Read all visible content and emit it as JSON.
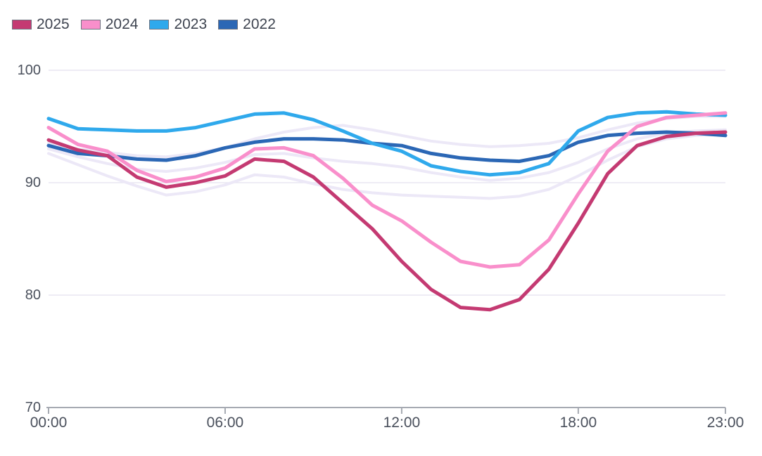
{
  "legend": [
    {
      "label": "2025",
      "color": "#c43a72"
    },
    {
      "label": "2024",
      "color": "#f98fcb"
    },
    {
      "label": "2023",
      "color": "#2fa9ec"
    },
    {
      "label": "2022",
      "color": "#2b67b5"
    }
  ],
  "colors": {
    "background": "#ffffff",
    "gridline": "#e8e5f2",
    "axis": "#a6aab2",
    "label_text": "#4a505c",
    "legend_text": "#3e4450",
    "ghost_line": "#ece8f7",
    "series_2025": "#c43a72",
    "series_2024": "#f98fcb",
    "series_2023": "#2fa9ec",
    "series_2022": "#2b67b5"
  },
  "chart_data": {
    "type": "line",
    "title": "",
    "xlabel": "",
    "ylabel": "",
    "ylim": [
      70,
      100
    ],
    "grid": "horizontal",
    "legend_position": "top-left",
    "x": [
      "00:00",
      "01:00",
      "02:00",
      "03:00",
      "04:00",
      "05:00",
      "06:00",
      "07:00",
      "08:00",
      "09:00",
      "10:00",
      "11:00",
      "12:00",
      "13:00",
      "14:00",
      "15:00",
      "16:00",
      "17:00",
      "18:00",
      "19:00",
      "20:00",
      "21:00",
      "22:00",
      "23:00"
    ],
    "x_tick_labels": [
      "00:00",
      "06:00",
      "12:00",
      "18:00",
      "23:00"
    ],
    "x_tick_hours": [
      0,
      6,
      12,
      18,
      23
    ],
    "y_tick_labels": [
      100,
      90,
      80,
      70
    ],
    "y_gridlines": [
      100,
      90,
      80
    ],
    "series": [
      {
        "name": "2025",
        "color": "#c43a72",
        "values": [
          93.8,
          92.9,
          92.4,
          90.5,
          89.6,
          90.0,
          90.6,
          92.1,
          91.9,
          90.5,
          88.2,
          85.9,
          83.0,
          80.5,
          78.9,
          78.7,
          79.6,
          82.3,
          86.4,
          90.8,
          93.3,
          94.1,
          94.4,
          94.5
        ]
      },
      {
        "name": "2024",
        "color": "#f98fcb",
        "values": [
          94.9,
          93.4,
          92.8,
          91.1,
          90.1,
          90.5,
          91.3,
          93.0,
          93.1,
          92.4,
          90.4,
          88.0,
          86.6,
          84.7,
          83.0,
          82.5,
          82.7,
          84.9,
          89.0,
          92.8,
          95.0,
          95.8,
          96.0,
          96.2
        ]
      },
      {
        "name": "2023",
        "color": "#2fa9ec",
        "values": [
          95.7,
          94.8,
          94.7,
          94.6,
          94.6,
          94.9,
          95.5,
          96.1,
          96.2,
          95.6,
          94.6,
          93.5,
          92.8,
          91.5,
          91.0,
          90.7,
          90.9,
          91.7,
          94.6,
          95.8,
          96.2,
          96.3,
          96.1,
          96.0
        ]
      },
      {
        "name": "2022",
        "color": "#2b67b5",
        "values": [
          93.3,
          92.6,
          92.4,
          92.1,
          92.0,
          92.4,
          93.1,
          93.6,
          93.9,
          93.9,
          93.8,
          93.5,
          93.3,
          92.6,
          92.2,
          92.0,
          91.9,
          92.4,
          93.6,
          94.2,
          94.4,
          94.5,
          94.4,
          94.2
        ]
      }
    ],
    "background_series": [
      {
        "name": "unlabeled-faint-1",
        "color": "#ece8f7",
        "values": [
          93.5,
          93.0,
          92.7,
          92.4,
          92.3,
          92.6,
          93.1,
          93.9,
          94.5,
          94.9,
          95.1,
          94.7,
          94.2,
          93.7,
          93.4,
          93.2,
          93.3,
          93.5,
          94.0,
          94.7,
          95.3,
          95.7,
          95.9,
          95.9
        ]
      },
      {
        "name": "unlabeled-faint-2",
        "color": "#ece8f7",
        "values": [
          93.0,
          92.3,
          91.7,
          91.2,
          91.0,
          91.3,
          91.8,
          92.5,
          92.6,
          92.2,
          91.9,
          91.7,
          91.4,
          90.9,
          90.5,
          90.2,
          90.4,
          90.9,
          91.8,
          93.0,
          93.9,
          94.4,
          94.6,
          94.7
        ]
      },
      {
        "name": "unlabeled-faint-3",
        "color": "#ece8f7",
        "values": [
          92.6,
          91.6,
          90.6,
          89.7,
          88.9,
          89.2,
          89.8,
          90.7,
          90.5,
          89.9,
          89.4,
          89.1,
          88.9,
          88.8,
          88.7,
          88.6,
          88.8,
          89.4,
          90.6,
          92.0,
          93.2,
          93.9,
          94.2,
          94.3
        ]
      }
    ]
  }
}
